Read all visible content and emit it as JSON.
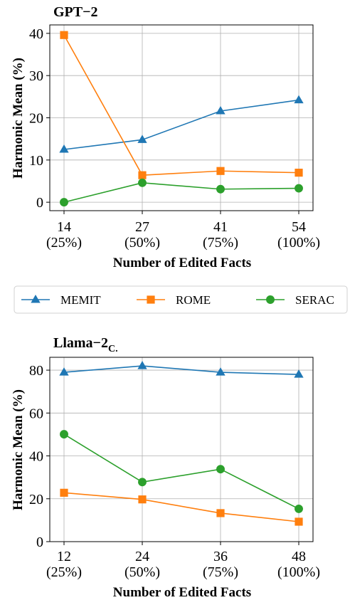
{
  "legend": {
    "items": [
      {
        "label": "MEMIT",
        "color": "#1f77b4",
        "marker": "triangle"
      },
      {
        "label": "ROME",
        "color": "#ff7f0e",
        "marker": "square"
      },
      {
        "label": "SERAC",
        "color": "#2ca02c",
        "marker": "circle"
      }
    ]
  },
  "chart_data": [
    {
      "type": "line",
      "title": "GPT−2",
      "xlabel": "Number of Edited Facts",
      "ylabel": "Harmonic Mean (%)",
      "categories": [
        "14",
        "27",
        "41",
        "54"
      ],
      "category_sublabels": [
        "(25%)",
        "(50%)",
        "(75%)",
        "(100%)"
      ],
      "yticks": [
        "0",
        "10",
        "20",
        "30",
        "40"
      ],
      "ylim": [
        -2,
        42
      ],
      "grid": true,
      "series": [
        {
          "name": "MEMIT",
          "values": [
            12.5,
            14.8,
            21.6,
            24.2
          ]
        },
        {
          "name": "ROME",
          "values": [
            39.6,
            6.4,
            7.4,
            7.0
          ]
        },
        {
          "name": "SERAC",
          "values": [
            0.0,
            4.6,
            3.1,
            3.3
          ]
        }
      ]
    },
    {
      "type": "line",
      "title": "Llama−2",
      "title_sub": "C.",
      "xlabel": "Number of Edited Facts",
      "ylabel": "Harmonic Mean (%)",
      "categories": [
        "12",
        "24",
        "36",
        "48"
      ],
      "category_sublabels": [
        "(25%)",
        "(50%)",
        "(75%)",
        "(100%)"
      ],
      "yticks": [
        "0",
        "20",
        "40",
        "60",
        "80"
      ],
      "ylim": [
        0,
        86
      ],
      "grid": true,
      "series": [
        {
          "name": "MEMIT",
          "values": [
            79.0,
            82.0,
            79.0,
            78.0
          ]
        },
        {
          "name": "ROME",
          "values": [
            22.8,
            19.7,
            13.3,
            9.3
          ]
        },
        {
          "name": "SERAC",
          "values": [
            50.1,
            27.8,
            33.8,
            15.3
          ]
        }
      ]
    }
  ]
}
